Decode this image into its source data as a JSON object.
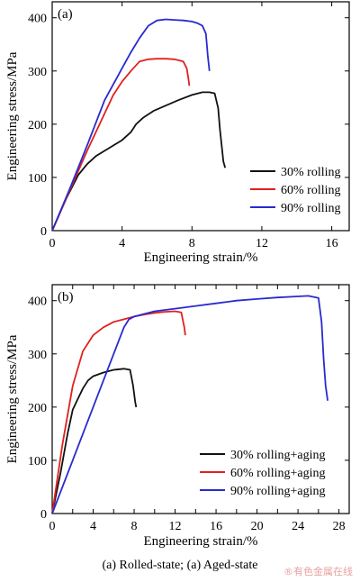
{
  "caption": "(a) Rolled-state; (a) Aged-state",
  "watermark": "®有色金属在线",
  "colors": {
    "black": "#111111",
    "red": "#e02020",
    "blue": "#2a2ad0"
  },
  "chart_data": [
    {
      "type": "line",
      "panel_label": "(a)",
      "xlabel": "Engineering strain/%",
      "ylabel": "Engineering stress/MPa",
      "xlim": [
        0,
        17
      ],
      "ylim": [
        0,
        430
      ],
      "xticks": [
        0,
        4,
        8,
        12,
        16
      ],
      "yticks": [
        0,
        100,
        200,
        300,
        400
      ],
      "legend_position": "bottom-right",
      "series": [
        {
          "name": "30% rolling",
          "color": "#111111",
          "x": [
            0,
            0.8,
            1.5,
            2.0,
            2.5,
            3.0,
            3.5,
            4.0,
            4.5,
            4.8,
            5.2,
            5.8,
            6.5,
            7.2,
            8.0,
            8.6,
            9.0,
            9.3,
            9.5,
            9.6,
            9.7,
            9.8,
            9.9
          ],
          "y": [
            0,
            60,
            105,
            125,
            140,
            150,
            160,
            170,
            185,
            200,
            212,
            225,
            235,
            245,
            255,
            260,
            260,
            258,
            230,
            190,
            160,
            130,
            118
          ]
        },
        {
          "name": "60% rolling",
          "color": "#e02020",
          "x": [
            0,
            1.0,
            2.0,
            3.0,
            3.5,
            4.0,
            4.5,
            5.0,
            5.5,
            6.0,
            6.5,
            7.0,
            7.5,
            7.7,
            7.8,
            7.85
          ],
          "y": [
            0,
            75,
            150,
            220,
            255,
            280,
            300,
            318,
            322,
            323,
            323,
            322,
            318,
            305,
            285,
            272
          ]
        },
        {
          "name": "90% rolling",
          "color": "#2a2ad0",
          "x": [
            0,
            1.0,
            2.0,
            3.0,
            3.5,
            4.0,
            4.5,
            5.0,
            5.5,
            6.0,
            6.5,
            7.0,
            7.5,
            8.0,
            8.3,
            8.6,
            8.8,
            8.9,
            9.0
          ],
          "y": [
            0,
            78,
            160,
            245,
            275,
            305,
            335,
            362,
            385,
            395,
            397,
            396,
            395,
            393,
            390,
            385,
            370,
            330,
            300
          ]
        }
      ]
    },
    {
      "type": "line",
      "panel_label": "(b)",
      "xlabel": "Engineering strain/%",
      "ylabel": "Engineering stress/MPa",
      "xlim": [
        0,
        29
      ],
      "ylim": [
        0,
        430
      ],
      "xticks": [
        0,
        2,
        4,
        6,
        8,
        10,
        12,
        14,
        16,
        18,
        20,
        22,
        24,
        26,
        28
      ],
      "xtick_labels": [
        "0",
        "",
        "4",
        "",
        "8",
        "",
        "12",
        "",
        "16",
        "",
        "20",
        "",
        "24",
        "",
        "28"
      ],
      "yticks": [
        0,
        100,
        200,
        300,
        400
      ],
      "legend_position": "bottom-right",
      "series": [
        {
          "name": "30% rolling+aging",
          "color": "#111111",
          "x": [
            0,
            0.8,
            1.5,
            2.0,
            2.5,
            3.0,
            3.5,
            4.0,
            5.0,
            6.0,
            7.0,
            7.6,
            7.9,
            8.1,
            8.2
          ],
          "y": [
            0,
            75,
            150,
            195,
            215,
            235,
            250,
            258,
            265,
            270,
            272,
            270,
            240,
            210,
            200
          ]
        },
        {
          "name": "60% rolling+aging",
          "color": "#e02020",
          "x": [
            0,
            1.0,
            2.0,
            3.0,
            4.0,
            5.0,
            6.0,
            7.0,
            8.0,
            9.0,
            10.0,
            11.0,
            12.0,
            12.6,
            12.9,
            13.0
          ],
          "y": [
            0,
            130,
            240,
            305,
            335,
            350,
            360,
            365,
            370,
            374,
            377,
            379,
            380,
            378,
            350,
            335
          ]
        },
        {
          "name": "90% rolling+aging",
          "color": "#2a2ad0",
          "x": [
            0,
            2.0,
            4.0,
            6.0,
            7.0,
            7.5,
            8.0,
            10.0,
            12.0,
            14.0,
            16.0,
            18.0,
            20.0,
            22.0,
            24.0,
            25.0,
            26.0,
            26.3,
            26.5,
            26.7,
            26.9
          ],
          "y": [
            0,
            100,
            200,
            300,
            350,
            365,
            370,
            380,
            385,
            390,
            395,
            400,
            403,
            406,
            408,
            409,
            405,
            360,
            290,
            240,
            212
          ]
        }
      ]
    }
  ]
}
